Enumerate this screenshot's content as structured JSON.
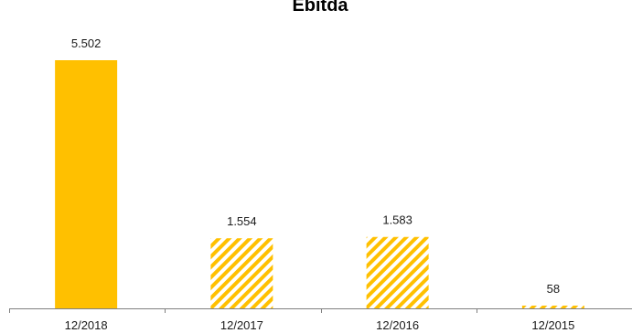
{
  "chart_data": {
    "type": "bar",
    "title": "Ebitda",
    "categories": [
      "12/2018",
      "12/2017",
      "12/2016",
      "12/2015"
    ],
    "values": [
      5502,
      1554,
      1583,
      58
    ],
    "value_labels": [
      "5.502",
      "1.554",
      "1.583",
      "58"
    ],
    "fills": [
      "solid",
      "hatched",
      "hatched",
      "hatched"
    ],
    "xlabel": "",
    "ylabel": "",
    "ylim": [
      0,
      5502
    ],
    "grid": false,
    "legend": "none"
  },
  "colors": {
    "bar": "#FFC000",
    "axis": "#808080",
    "text": "#1a1a1a"
  }
}
